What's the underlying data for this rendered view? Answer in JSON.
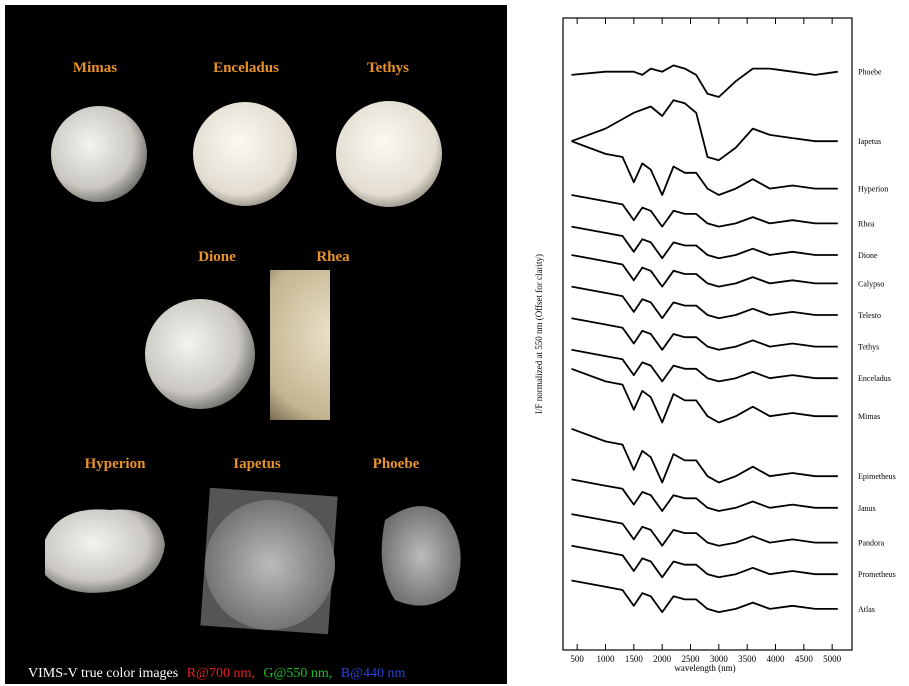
{
  "left_panel": {
    "labels": [
      "Mimas",
      "Enceladus",
      "Tethys",
      "Dione",
      "Rhea",
      "Hyperion",
      "Iapetus",
      "Phoebe"
    ],
    "caption": [
      "VIMS-V true color images",
      "R@700 nm,",
      "G@550 nm,",
      "B@440 nm"
    ]
  },
  "chart_data": {
    "type": "line",
    "x_label": "wavelength (nm)",
    "y_label": "I/F normalized at 550 nm (Offset for clarity)",
    "xlim": [
      250,
      5350
    ],
    "xticks": [
      500,
      1000,
      1500,
      2000,
      2500,
      3000,
      3500,
      4000,
      4500,
      5000
    ],
    "ylim": [
      0,
      20
    ],
    "color": "#000000",
    "x": [
      400,
      1000,
      1300,
      1500,
      1650,
      1800,
      2000,
      2200,
      2400,
      2600,
      2800,
      3000,
      3300,
      3600,
      3900,
      4300,
      4700,
      5100
    ],
    "series": [
      {
        "name": "Phoebe",
        "values": [
          18.2,
          18.3,
          18.3,
          18.3,
          18.2,
          18.4,
          18.3,
          18.5,
          18.4,
          18.2,
          17.6,
          17.5,
          18.0,
          18.4,
          18.4,
          18.3,
          18.2,
          18.3
        ]
      },
      {
        "name": "Iapetus",
        "values": [
          16.1,
          16.5,
          16.8,
          17.0,
          17.1,
          17.2,
          16.9,
          17.4,
          17.3,
          17.0,
          15.6,
          15.5,
          15.9,
          16.5,
          16.3,
          16.2,
          16.1,
          16.1
        ]
      },
      {
        "name": "Hyperion",
        "values": [
          16.1,
          15.7,
          15.6,
          14.8,
          15.4,
          15.2,
          14.4,
          15.3,
          15.1,
          15.1,
          14.6,
          14.4,
          14.6,
          14.9,
          14.6,
          14.7,
          14.6,
          14.6
        ]
      },
      {
        "name": "Rhea",
        "values": [
          14.4,
          14.2,
          14.1,
          13.6,
          14.0,
          13.9,
          13.4,
          13.9,
          13.8,
          13.8,
          13.5,
          13.4,
          13.5,
          13.7,
          13.5,
          13.6,
          13.5,
          13.5
        ]
      },
      {
        "name": "Dione",
        "values": [
          13.4,
          13.2,
          13.1,
          12.6,
          13.0,
          12.9,
          12.4,
          12.9,
          12.8,
          12.8,
          12.5,
          12.4,
          12.5,
          12.7,
          12.5,
          12.6,
          12.5,
          12.5
        ]
      },
      {
        "name": "Calypso",
        "values": [
          12.5,
          12.3,
          12.2,
          11.7,
          12.1,
          12.0,
          11.5,
          12.0,
          11.9,
          11.9,
          11.6,
          11.5,
          11.6,
          11.8,
          11.6,
          11.7,
          11.6,
          11.6
        ]
      },
      {
        "name": "Telesto",
        "values": [
          11.5,
          11.3,
          11.2,
          10.7,
          11.1,
          11.0,
          10.5,
          11.0,
          10.9,
          10.9,
          10.6,
          10.5,
          10.6,
          10.8,
          10.6,
          10.7,
          10.6,
          10.6
        ]
      },
      {
        "name": "Tethys",
        "values": [
          10.5,
          10.3,
          10.2,
          9.7,
          10.1,
          10.0,
          9.5,
          10.0,
          9.9,
          9.9,
          9.6,
          9.5,
          9.6,
          9.8,
          9.6,
          9.7,
          9.6,
          9.6
        ]
      },
      {
        "name": "Enceladus",
        "values": [
          9.5,
          9.3,
          9.2,
          8.7,
          9.1,
          9.0,
          8.5,
          9.0,
          8.9,
          8.9,
          8.6,
          8.5,
          8.6,
          8.8,
          8.6,
          8.7,
          8.6,
          8.6
        ]
      },
      {
        "name": "Mimas",
        "values": [
          8.9,
          8.5,
          8.4,
          7.6,
          8.2,
          8.0,
          7.2,
          8.1,
          7.9,
          7.9,
          7.4,
          7.2,
          7.4,
          7.7,
          7.4,
          7.5,
          7.4,
          7.4
        ]
      },
      {
        "name": "Epimetheus",
        "values": [
          7.0,
          6.6,
          6.5,
          5.7,
          6.3,
          6.1,
          5.3,
          6.2,
          6.0,
          6.0,
          5.5,
          5.3,
          5.5,
          5.8,
          5.5,
          5.6,
          5.5,
          5.5
        ]
      },
      {
        "name": "Janus",
        "values": [
          5.4,
          5.2,
          5.1,
          4.6,
          5.0,
          4.9,
          4.4,
          4.9,
          4.8,
          4.8,
          4.5,
          4.4,
          4.5,
          4.7,
          4.5,
          4.6,
          4.5,
          4.5
        ]
      },
      {
        "name": "Pandora",
        "values": [
          4.3,
          4.1,
          4.0,
          3.5,
          3.9,
          3.8,
          3.3,
          3.8,
          3.7,
          3.7,
          3.4,
          3.3,
          3.4,
          3.6,
          3.4,
          3.5,
          3.4,
          3.4
        ]
      },
      {
        "name": "Prometheus",
        "values": [
          3.3,
          3.1,
          3.0,
          2.5,
          2.9,
          2.8,
          2.3,
          2.8,
          2.7,
          2.7,
          2.4,
          2.3,
          2.4,
          2.6,
          2.4,
          2.5,
          2.4,
          2.4
        ]
      },
      {
        "name": "Atlas",
        "values": [
          2.2,
          2.0,
          1.9,
          1.4,
          1.8,
          1.7,
          1.2,
          1.7,
          1.6,
          1.6,
          1.3,
          1.2,
          1.3,
          1.5,
          1.3,
          1.4,
          1.3,
          1.3
        ]
      }
    ]
  }
}
